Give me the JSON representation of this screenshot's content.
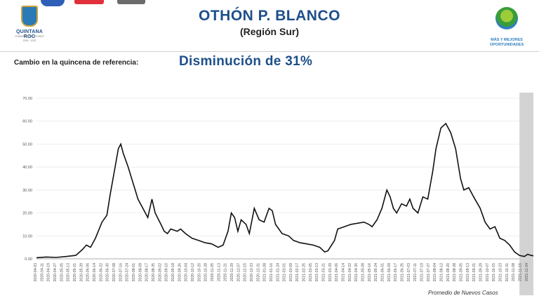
{
  "header": {
    "title": "OTHÓN P. BLANCO",
    "subtitle": "(Región Sur)",
    "left_logo": {
      "line1": "QUINTANA ROO",
      "line2": "GOBIERNO DEL ESTADO",
      "line3": "2016 - 2022"
    },
    "right_logo": {
      "line1": "MÁS Y MEJORES",
      "line2": "OPORTUNIDADES"
    }
  },
  "reference": {
    "label": "Cambio en la quincena de referencia:",
    "value": "Disminución de 31%"
  },
  "source_note": "Promedio de Nuevos Casos",
  "colors": {
    "title": "#1d4f8b",
    "line": "#111111",
    "highlight": "#d3d3d3",
    "grid": "#e6e6e6"
  },
  "chart_data": {
    "type": "line",
    "ylim": [
      0,
      70
    ],
    "yticks": [
      "0.00",
      "10.00",
      "20.00",
      "30.00",
      "40.00",
      "50.00",
      "60.00",
      "70.00"
    ],
    "xticks": [
      "2020-04-03",
      "2020-04-11",
      "2020-04-19",
      "2020-04-27",
      "2020-05-05",
      "2020-05-13",
      "2020-05-21",
      "2020-05-29",
      "2020-06-06",
      "2020-06-14",
      "2020-06-22",
      "2020-06-30",
      "2020-07-08",
      "2020-07-16",
      "2020-07-24",
      "2020-08-01",
      "2020-08-09",
      "2020-08-17",
      "2020-08-25",
      "2020-09-02",
      "2020-09-10",
      "2020-09-18",
      "2020-09-26",
      "2020-10-04",
      "2020-10-12",
      "2020-10-20",
      "2020-10-28",
      "2020-11-05",
      "2020-11-13",
      "2020-11-21",
      "2020-11-29",
      "2020-12-07",
      "2020-12-15",
      "2020-12-23",
      "2020-12-31",
      "2021-01-08",
      "2021-01-16",
      "2021-01-24",
      "2021-02-01",
      "2021-02-09",
      "2021-02-17",
      "2021-02-25",
      "2021-03-05",
      "2021-03-13",
      "2021-03-21",
      "2021-03-29",
      "2021-04-06",
      "2021-04-14",
      "2021-04-22",
      "2021-04-30",
      "2021-05-08",
      "2021-05-16",
      "2021-05-24",
      "2021-06-01",
      "2021-06-09",
      "2021-06-17",
      "2021-06-25",
      "2021-07-03",
      "2021-07-11",
      "2021-07-19",
      "2021-07-27",
      "2021-08-04",
      "2021-08-12",
      "2021-08-20",
      "2021-08-28",
      "2021-09-05",
      "2021-09-13",
      "2021-09-21",
      "2021-09-29",
      "2021-10-07",
      "2021-10-15",
      "2021-10-23",
      "2021-10-31",
      "2021-11-08",
      "2021-11-16",
      "2021-11-24"
    ],
    "x_start": "2020-04-03",
    "x_end": "2021-12-01",
    "highlight_range": [
      "2021-11-14",
      "2021-12-01"
    ],
    "series": [
      {
        "points": [
          [
            "2020-04-03",
            0.5
          ],
          [
            "2020-04-15",
            0.8
          ],
          [
            "2020-04-27",
            0.6
          ],
          [
            "2020-05-09",
            1.0
          ],
          [
            "2020-05-21",
            1.5
          ],
          [
            "2020-05-29",
            4.0
          ],
          [
            "2020-06-03",
            6.0
          ],
          [
            "2020-06-08",
            5.0
          ],
          [
            "2020-06-14",
            9.0
          ],
          [
            "2020-06-22",
            16.0
          ],
          [
            "2020-06-28",
            19.0
          ],
          [
            "2020-07-02",
            28.0
          ],
          [
            "2020-07-08",
            40.0
          ],
          [
            "2020-07-12",
            48.0
          ],
          [
            "2020-07-15",
            50.0
          ],
          [
            "2020-07-18",
            46.0
          ],
          [
            "2020-07-24",
            40.0
          ],
          [
            "2020-07-30",
            33.0
          ],
          [
            "2020-08-05",
            26.0
          ],
          [
            "2020-08-11",
            22.0
          ],
          [
            "2020-08-17",
            18.0
          ],
          [
            "2020-08-22",
            26.0
          ],
          [
            "2020-08-26",
            20.0
          ],
          [
            "2020-09-02",
            15.0
          ],
          [
            "2020-09-06",
            12.0
          ],
          [
            "2020-09-10",
            11.0
          ],
          [
            "2020-09-14",
            13.0
          ],
          [
            "2020-09-22",
            12.0
          ],
          [
            "2020-09-26",
            13.0
          ],
          [
            "2020-10-02",
            11.0
          ],
          [
            "2020-10-10",
            9.0
          ],
          [
            "2020-10-18",
            8.0
          ],
          [
            "2020-10-26",
            7.0
          ],
          [
            "2020-11-03",
            6.5
          ],
          [
            "2020-11-11",
            5.0
          ],
          [
            "2020-11-17",
            6.0
          ],
          [
            "2020-11-23",
            12.0
          ],
          [
            "2020-11-27",
            20.0
          ],
          [
            "2020-12-01",
            18.0
          ],
          [
            "2020-12-05",
            12.0
          ],
          [
            "2020-12-09",
            17.0
          ],
          [
            "2020-12-15",
            15.0
          ],
          [
            "2020-12-19",
            11.0
          ],
          [
            "2020-12-25",
            22.0
          ],
          [
            "2020-12-31",
            17.0
          ],
          [
            "2021-01-06",
            16.0
          ],
          [
            "2021-01-12",
            22.0
          ],
          [
            "2021-01-16",
            21.0
          ],
          [
            "2021-01-20",
            15.0
          ],
          [
            "2021-01-28",
            11.0
          ],
          [
            "2021-02-05",
            10.0
          ],
          [
            "2021-02-11",
            8.0
          ],
          [
            "2021-02-19",
            7.0
          ],
          [
            "2021-02-27",
            6.5
          ],
          [
            "2021-03-07",
            6.0
          ],
          [
            "2021-03-15",
            5.0
          ],
          [
            "2021-03-21",
            3.0
          ],
          [
            "2021-03-25",
            3.5
          ],
          [
            "2021-04-02",
            8.0
          ],
          [
            "2021-04-06",
            13.0
          ],
          [
            "2021-04-14",
            14.0
          ],
          [
            "2021-04-22",
            15.0
          ],
          [
            "2021-04-30",
            15.5
          ],
          [
            "2021-05-08",
            16.0
          ],
          [
            "2021-05-14",
            15.0
          ],
          [
            "2021-05-18",
            14.0
          ],
          [
            "2021-05-24",
            17.0
          ],
          [
            "2021-05-30",
            22.0
          ],
          [
            "2021-06-05",
            30.0
          ],
          [
            "2021-06-09",
            27.0
          ],
          [
            "2021-06-13",
            22.0
          ],
          [
            "2021-06-17",
            20.0
          ],
          [
            "2021-06-23",
            24.0
          ],
          [
            "2021-06-29",
            23.0
          ],
          [
            "2021-07-03",
            26.0
          ],
          [
            "2021-07-07",
            22.0
          ],
          [
            "2021-07-13",
            20.0
          ],
          [
            "2021-07-19",
            27.0
          ],
          [
            "2021-07-25",
            26.0
          ],
          [
            "2021-07-31",
            38.0
          ],
          [
            "2021-08-04",
            48.0
          ],
          [
            "2021-08-10",
            57.0
          ],
          [
            "2021-08-16",
            59.0
          ],
          [
            "2021-08-22",
            55.0
          ],
          [
            "2021-08-28",
            48.0
          ],
          [
            "2021-09-03",
            35.0
          ],
          [
            "2021-09-07",
            30.0
          ],
          [
            "2021-09-13",
            31.0
          ],
          [
            "2021-09-19",
            27.0
          ],
          [
            "2021-09-27",
            22.0
          ],
          [
            "2021-10-03",
            16.0
          ],
          [
            "2021-10-09",
            13.0
          ],
          [
            "2021-10-15",
            14.0
          ],
          [
            "2021-10-21",
            9.0
          ],
          [
            "2021-10-27",
            8.0
          ],
          [
            "2021-11-02",
            6.0
          ],
          [
            "2021-11-08",
            3.0
          ],
          [
            "2021-11-14",
            1.5
          ],
          [
            "2021-11-20",
            1.0
          ],
          [
            "2021-11-24",
            2.0
          ],
          [
            "2021-11-28",
            1.5
          ],
          [
            "2021-12-01",
            1.3
          ]
        ]
      }
    ]
  }
}
